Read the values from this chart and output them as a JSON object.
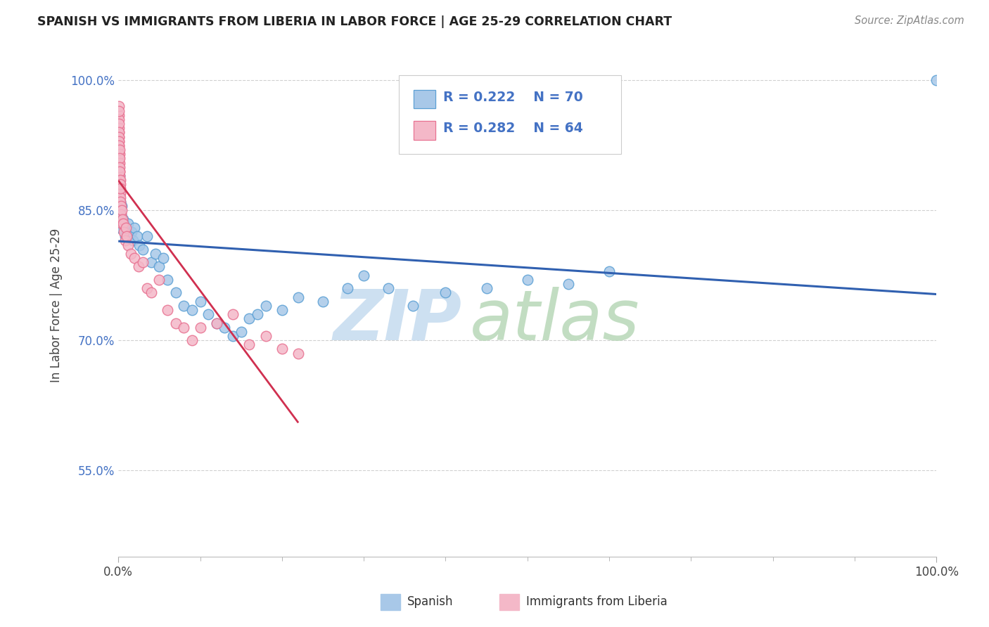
{
  "title": "SPANISH VS IMMIGRANTS FROM LIBERIA IN LABOR FORCE | AGE 25-29 CORRELATION CHART",
  "source_text": "Source: ZipAtlas.com",
  "ylabel": "In Labor Force | Age 25-29",
  "xlim": [
    0.0,
    100.0
  ],
  "ylim": [
    45.0,
    103.0
  ],
  "yticks": [
    55.0,
    70.0,
    85.0,
    100.0
  ],
  "ytick_labels": [
    "55.0%",
    "70.0%",
    "85.0%",
    "100.0%"
  ],
  "xticks": [
    0.0,
    100.0
  ],
  "xtick_labels": [
    "0.0%",
    "100.0%"
  ],
  "blue_scatter_color": "#a8c8e8",
  "blue_edge_color": "#5a9fd4",
  "pink_scatter_color": "#f4b8c8",
  "pink_edge_color": "#e87090",
  "blue_line_color": "#3060b0",
  "pink_line_color": "#d03050",
  "legend_color": "#4472c4",
  "legend_R_blue": "0.222",
  "legend_N_blue": "70",
  "legend_R_pink": "0.282",
  "legend_N_pink": "64",
  "spanish_x": [
    0.05,
    0.05,
    0.06,
    0.07,
    0.08,
    0.09,
    0.1,
    0.1,
    0.11,
    0.12,
    0.13,
    0.14,
    0.14,
    0.15,
    0.16,
    0.17,
    0.18,
    0.2,
    0.22,
    0.24,
    0.26,
    0.3,
    0.35,
    0.4,
    0.45,
    0.5,
    0.6,
    0.7,
    0.8,
    0.9,
    1.0,
    1.2,
    1.4,
    1.6,
    1.8,
    2.0,
    2.3,
    2.6,
    3.0,
    3.5,
    4.0,
    4.5,
    5.0,
    5.5,
    6.0,
    7.0,
    8.0,
    9.0,
    10.0,
    11.0,
    12.0,
    13.0,
    14.0,
    15.0,
    16.0,
    17.0,
    18.0,
    20.0,
    22.0,
    25.0,
    28.0,
    30.0,
    33.0,
    36.0,
    40.0,
    45.0,
    50.0,
    55.0,
    60.0,
    100.0
  ],
  "spanish_y": [
    87.0,
    83.0,
    86.0,
    90.0,
    88.5,
    85.0,
    84.0,
    91.0,
    86.5,
    89.0,
    83.5,
    87.5,
    85.5,
    86.0,
    84.5,
    83.0,
    85.0,
    84.0,
    83.5,
    86.0,
    85.0,
    84.5,
    83.0,
    85.5,
    84.0,
    83.5,
    84.0,
    83.5,
    82.0,
    83.0,
    82.5,
    83.5,
    82.0,
    82.5,
    81.5,
    83.0,
    82.0,
    81.0,
    80.5,
    82.0,
    79.0,
    80.0,
    78.5,
    79.5,
    77.0,
    75.5,
    74.0,
    73.5,
    74.5,
    73.0,
    72.0,
    71.5,
    70.5,
    71.0,
    72.5,
    73.0,
    74.0,
    73.5,
    75.0,
    74.5,
    76.0,
    77.5,
    76.0,
    74.0,
    75.5,
    76.0,
    77.0,
    76.5,
    78.0,
    100.0
  ],
  "liberia_x": [
    0.02,
    0.03,
    0.04,
    0.04,
    0.05,
    0.05,
    0.06,
    0.06,
    0.07,
    0.07,
    0.08,
    0.08,
    0.09,
    0.09,
    0.1,
    0.1,
    0.11,
    0.11,
    0.12,
    0.12,
    0.13,
    0.13,
    0.14,
    0.15,
    0.15,
    0.16,
    0.17,
    0.18,
    0.19,
    0.2,
    0.21,
    0.22,
    0.23,
    0.25,
    0.27,
    0.3,
    0.35,
    0.4,
    0.45,
    0.5,
    0.6,
    0.7,
    0.8,
    0.9,
    1.0,
    1.2,
    1.5,
    2.0,
    2.5,
    3.0,
    3.5,
    4.0,
    5.0,
    6.0,
    7.0,
    8.0,
    9.0,
    10.0,
    12.0,
    14.0,
    16.0,
    18.0,
    20.0,
    22.0
  ],
  "liberia_y": [
    92.0,
    94.0,
    96.0,
    93.5,
    95.5,
    97.0,
    94.5,
    96.5,
    93.0,
    95.0,
    94.0,
    92.5,
    93.5,
    91.5,
    93.0,
    91.0,
    92.5,
    90.5,
    91.5,
    89.5,
    90.5,
    92.0,
    89.0,
    91.0,
    88.5,
    90.0,
    88.0,
    89.5,
    87.5,
    88.5,
    87.0,
    88.0,
    86.5,
    87.5,
    86.0,
    85.5,
    84.5,
    83.5,
    85.0,
    84.0,
    83.5,
    82.5,
    81.5,
    83.0,
    82.0,
    81.0,
    80.0,
    79.5,
    78.5,
    79.0,
    76.0,
    75.5,
    77.0,
    73.5,
    72.0,
    71.5,
    70.0,
    71.5,
    72.0,
    73.0,
    69.5,
    70.5,
    69.0,
    68.5
  ],
  "watermark_zip_color": "#c8ddf0",
  "watermark_atlas_color": "#b8d8b8",
  "background_color": "#ffffff",
  "grid_color": "#d0d0d0",
  "title_fontsize": 12.5,
  "tick_fontsize": 12,
  "ylabel_fontsize": 12
}
